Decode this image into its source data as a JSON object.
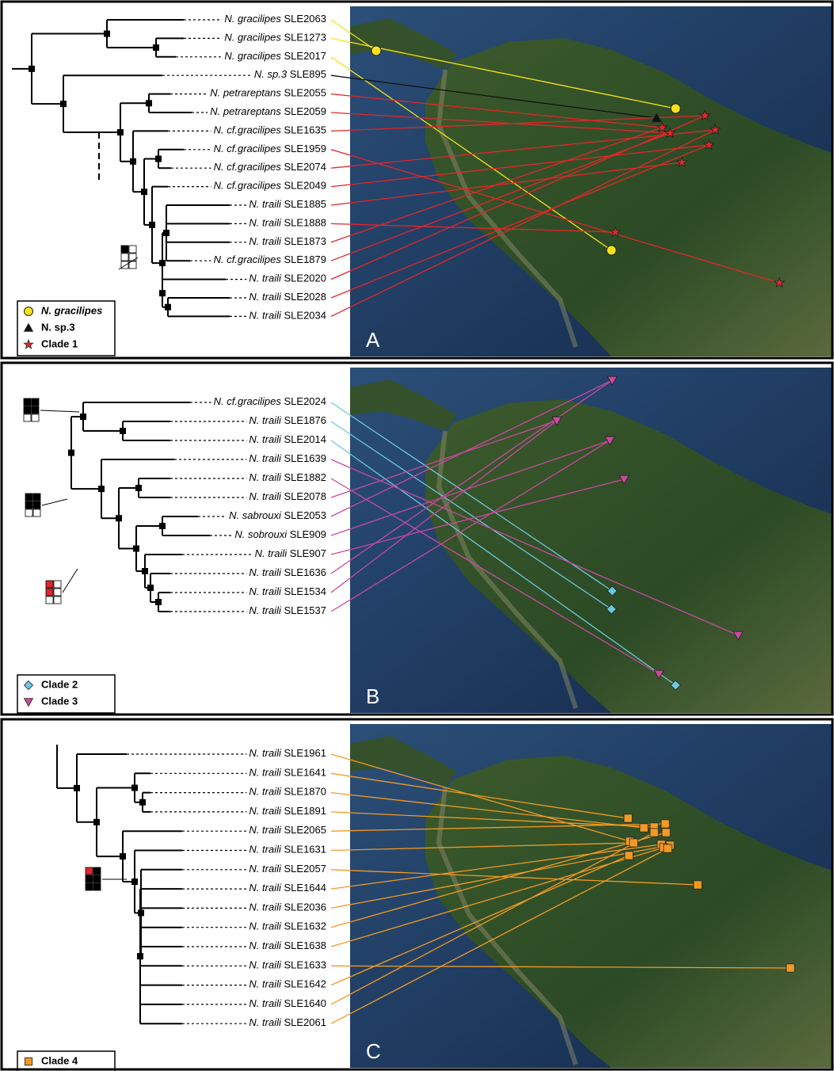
{
  "panels": [
    {
      "letter": "A",
      "taxa": [
        {
          "name": "N. gracilipes",
          "id": "SLE2063"
        },
        {
          "name": "N. gracilipes",
          "id": "SLE1273"
        },
        {
          "name": "N. gracilipes",
          "id": "SLE2017"
        },
        {
          "name": "N. sp.3",
          "id": "SLE895"
        },
        {
          "name": "N. petrareptans",
          "id": "SLE2055"
        },
        {
          "name": "N. petrareptans",
          "id": "SLE2059"
        },
        {
          "name": "N. cf.gracilipes",
          "id": "SLE1635"
        },
        {
          "name": "N. cf.gracilipes",
          "id": "SLE1959"
        },
        {
          "name": "N. cf.gracilipes",
          "id": "SLE2074"
        },
        {
          "name": "N. cf.gracilipes",
          "id": "SLE2049"
        },
        {
          "name": "N. traili",
          "id": "SLE1885"
        },
        {
          "name": "N. traili",
          "id": "SLE1888"
        },
        {
          "name": "N. traili",
          "id": "SLE1873"
        },
        {
          "name": "N. cf.gracilipes",
          "id": "SLE1879"
        },
        {
          "name": "N. traili",
          "id": "SLE2020"
        },
        {
          "name": "N. traili",
          "id": "SLE2028"
        },
        {
          "name": "N. traili",
          "id": "SLE2034"
        }
      ],
      "legend": [
        "N. gracilipes",
        "N. sp.3",
        "Clade 1"
      ]
    },
    {
      "letter": "B",
      "taxa": [
        {
          "name": "N. cf.gracilipes",
          "id": "SLE2024"
        },
        {
          "name": "N. traili",
          "id": "SLE1876"
        },
        {
          "name": "N. traili",
          "id": "SLE2014"
        },
        {
          "name": "N. traili",
          "id": "SLE1639"
        },
        {
          "name": "N. traili",
          "id": "SLE1882"
        },
        {
          "name": "N. traili",
          "id": "SLE2078"
        },
        {
          "name": "N. sabrouxi",
          "id": "SLE2053"
        },
        {
          "name": "N. sobrouxi",
          "id": "SLE909"
        },
        {
          "name": "N. traili",
          "id": "SLE907"
        },
        {
          "name": "N. traili",
          "id": "SLE1636"
        },
        {
          "name": "N. traili",
          "id": "SLE1534"
        },
        {
          "name": "N. traili",
          "id": "SLE1537"
        }
      ],
      "legend": [
        "Clade 2",
        "Clade 3"
      ]
    },
    {
      "letter": "C",
      "taxa": [
        {
          "name": "N. traili",
          "id": "SLE1961"
        },
        {
          "name": "N. traili",
          "id": "SLE1641"
        },
        {
          "name": "N. traili",
          "id": "SLE1870"
        },
        {
          "name": "N. traili",
          "id": "SLE1891"
        },
        {
          "name": "N. traili",
          "id": "SLE2065"
        },
        {
          "name": "N. traili",
          "id": "SLE1631"
        },
        {
          "name": "N. traili",
          "id": "SLE2057"
        },
        {
          "name": "N. traili",
          "id": "SLE1644"
        },
        {
          "name": "N. traili",
          "id": "SLE2036"
        },
        {
          "name": "N. traili",
          "id": "SLE1632"
        },
        {
          "name": "N. traili",
          "id": "SLE1638"
        },
        {
          "name": "N. traili",
          "id": "SLE1633"
        },
        {
          "name": "N. traili",
          "id": "SLE1642"
        },
        {
          "name": "N. traili",
          "id": "SLE1640"
        },
        {
          "name": "N. traili",
          "id": "SLE2061"
        }
      ],
      "legend": [
        "Clade 4"
      ]
    }
  ]
}
